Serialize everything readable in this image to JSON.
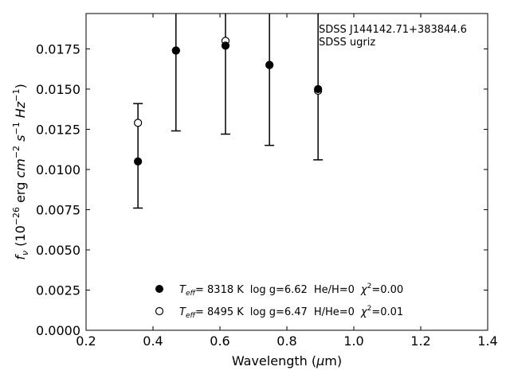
{
  "chart_data": {
    "type": "scatter",
    "xlabel": "Wavelength (μm)",
    "ylabel": "f_ν (10^-26 erg cm^-2 s^-1 Hz^-1)",
    "xlim": [
      0.2,
      1.4
    ],
    "ylim": [
      0.0,
      0.0197
    ],
    "x_ticks": [
      "0.2",
      "0.4",
      "0.6",
      "0.8",
      "1.0",
      "1.2",
      "1.4"
    ],
    "x_tick_values": [
      0.2,
      0.4,
      0.6,
      0.8,
      1.0,
      1.2,
      1.4
    ],
    "y_ticks": [
      "0.0000",
      "0.0025",
      "0.0050",
      "0.0075",
      "0.0100",
      "0.0125",
      "0.0150",
      "0.0175"
    ],
    "y_tick_values": [
      0.0,
      0.0025,
      0.005,
      0.0075,
      0.01,
      0.0125,
      0.015,
      0.0175
    ],
    "grid": false,
    "annotation": [
      "SDSS J144142.71+383844.6",
      "SDSS ugriz"
    ],
    "observed": {
      "x": [
        0.3551,
        0.4686,
        0.6166,
        0.748,
        0.8932
      ],
      "y": [
        0.0105,
        0.0175,
        0.0177,
        0.0165,
        0.015
      ],
      "err_lo": [
        0.0076,
        0.0124,
        0.0122,
        0.0115,
        0.0106
      ],
      "err_hi": [
        0.0141,
        0.0197,
        0.0197,
        0.0197,
        0.0197
      ]
    },
    "series": [
      {
        "name": "T_eff= 8318 K log g=6.62 He/H=0 χ²=0.00",
        "marker": "filled",
        "color": "#000000",
        "x": [
          0.3551,
          0.4686,
          0.6166,
          0.748,
          0.8932
        ],
        "y": [
          0.0105,
          0.0174,
          0.0177,
          0.0165,
          0.015
        ]
      },
      {
        "name": "T_eff= 8495 K log g=6.47 H/He=0 χ²=0.01",
        "marker": "open",
        "color": "#000000",
        "x": [
          0.3551,
          0.4686,
          0.6166,
          0.748,
          0.8932
        ],
        "y": [
          0.0129,
          0.0174,
          0.018,
          0.0165,
          0.0149
        ]
      }
    ],
    "legend": {
      "placement": "bottom-center",
      "entries": [
        {
          "marker": "filled",
          "teff": "=  8318 K",
          "logg": "log g=6.62",
          "comp": "He/H=0",
          "chi": "=0.00"
        },
        {
          "marker": "open",
          "teff": "=  8495 K",
          "logg": "log g=6.47",
          "comp": "H/He=0",
          "chi": "=0.01"
        }
      ]
    }
  }
}
